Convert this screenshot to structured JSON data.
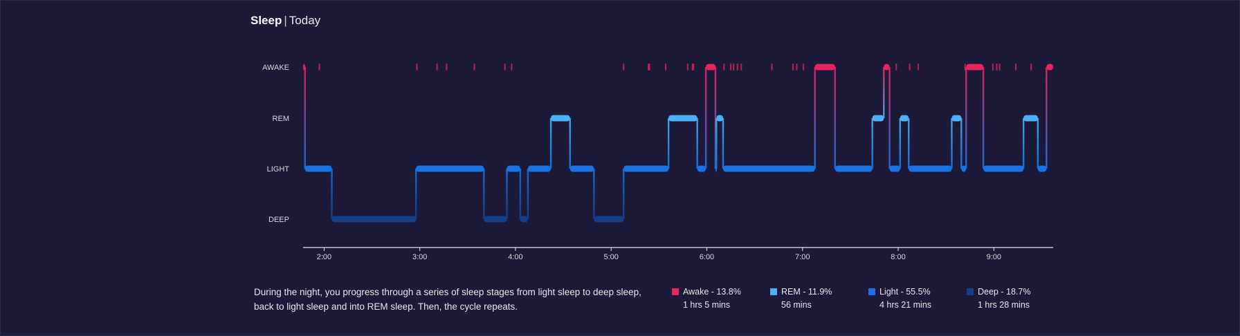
{
  "header": {
    "title": "Sleep",
    "separator": "|",
    "subtitle": "Today"
  },
  "description": "During the night, you progress through a series of sleep stages from light sleep to deep sleep, back to light sleep and into REM sleep. Then, the cycle repeats.",
  "legend": [
    {
      "label": "Awake - 13.8%",
      "duration": "1 hrs 5 mins",
      "color": "#e8245e"
    },
    {
      "label": "REM - 11.9%",
      "duration": "56 mins",
      "color": "#4ab1f6"
    },
    {
      "label": "Light - 55.5%",
      "duration": "4 hrs 21 mins",
      "color": "#1a73e3"
    },
    {
      "label": "Deep - 18.7%",
      "duration": "1 hrs 28 mins",
      "color": "#123f8a"
    }
  ],
  "chart_data": {
    "type": "line",
    "y_stages": [
      "AWAKE",
      "REM",
      "LIGHT",
      "DEEP"
    ],
    "x_ticks": [
      "2:00",
      "3:00",
      "4:00",
      "5:00",
      "6:00",
      "7:00",
      "8:00",
      "9:00"
    ],
    "x_tick_hours": [
      2,
      3,
      4,
      5,
      6,
      7,
      8,
      9
    ],
    "xlim_hours": [
      1.78,
      9.62
    ],
    "segments": [
      {
        "stage": "AWAKE",
        "start": 1.78,
        "end": 1.8
      },
      {
        "stage": "LIGHT",
        "start": 1.8,
        "end": 2.08
      },
      {
        "stage": "DEEP",
        "start": 2.08,
        "end": 2.96
      },
      {
        "stage": "LIGHT",
        "start": 2.96,
        "end": 3.67
      },
      {
        "stage": "DEEP",
        "start": 3.67,
        "end": 3.91
      },
      {
        "stage": "LIGHT",
        "start": 3.91,
        "end": 4.05
      },
      {
        "stage": "DEEP",
        "start": 4.05,
        "end": 4.13
      },
      {
        "stage": "LIGHT",
        "start": 4.13,
        "end": 4.37
      },
      {
        "stage": "REM",
        "start": 4.37,
        "end": 4.57
      },
      {
        "stage": "LIGHT",
        "start": 4.57,
        "end": 4.82
      },
      {
        "stage": "DEEP",
        "start": 4.82,
        "end": 5.13
      },
      {
        "stage": "LIGHT",
        "start": 5.13,
        "end": 5.6
      },
      {
        "stage": "REM",
        "start": 5.6,
        "end": 5.9
      },
      {
        "stage": "LIGHT",
        "start": 5.9,
        "end": 5.99
      },
      {
        "stage": "AWAKE",
        "start": 5.99,
        "end": 6.09
      },
      {
        "stage": "LIGHT",
        "start": 6.09,
        "end": 6.1
      },
      {
        "stage": "REM",
        "start": 6.1,
        "end": 6.17
      },
      {
        "stage": "LIGHT",
        "start": 6.17,
        "end": 7.13
      },
      {
        "stage": "AWAKE",
        "start": 7.13,
        "end": 7.34
      },
      {
        "stage": "LIGHT",
        "start": 7.34,
        "end": 7.73
      },
      {
        "stage": "REM",
        "start": 7.73,
        "end": 7.85
      },
      {
        "stage": "AWAKE",
        "start": 7.85,
        "end": 7.91
      },
      {
        "stage": "LIGHT",
        "start": 7.91,
        "end": 8.02
      },
      {
        "stage": "REM",
        "start": 8.02,
        "end": 8.11
      },
      {
        "stage": "LIGHT",
        "start": 8.11,
        "end": 8.56
      },
      {
        "stage": "REM",
        "start": 8.56,
        "end": 8.66
      },
      {
        "stage": "LIGHT",
        "start": 8.66,
        "end": 8.71
      },
      {
        "stage": "AWAKE",
        "start": 8.71,
        "end": 8.89
      },
      {
        "stage": "LIGHT",
        "start": 8.89,
        "end": 9.31
      },
      {
        "stage": "REM",
        "start": 9.31,
        "end": 9.46
      },
      {
        "stage": "LIGHT",
        "start": 9.46,
        "end": 9.55
      },
      {
        "stage": "AWAKE",
        "start": 9.55,
        "end": 9.62
      }
    ],
    "brief_awakenings": [
      1.95,
      2.97,
      3.18,
      3.28,
      3.57,
      3.89,
      3.96,
      5.13,
      5.39,
      5.4,
      5.57,
      5.8,
      5.85,
      5.86,
      6.18,
      6.25,
      6.28,
      6.32,
      6.36,
      6.68,
      6.9,
      6.94,
      7.01,
      7.98,
      8.12,
      8.21,
      8.7,
      8.99,
      9.03,
      9.06,
      9.23,
      9.39
    ],
    "colors": {
      "AWAKE": "#e8245e",
      "REM": "#4ab1f6",
      "LIGHT": "#1a73e3",
      "DEEP": "#123f8a"
    }
  }
}
